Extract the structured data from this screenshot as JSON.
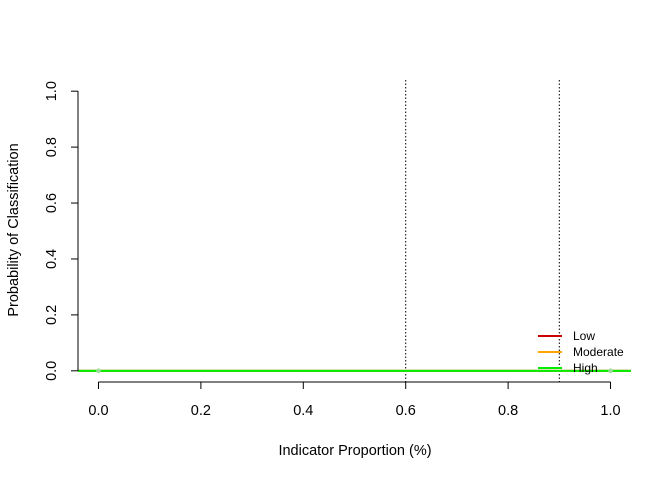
{
  "chart_data": {
    "type": "line",
    "title": "",
    "xlabel": "Indicator Proportion (%)",
    "ylabel": "Probability of Classification",
    "xlim": [
      -0.04,
      1.04
    ],
    "ylim": [
      -0.04,
      1.04
    ],
    "x_ticks": [
      0.0,
      0.2,
      0.4,
      0.6,
      0.8,
      1.0
    ],
    "x_tick_labels": [
      "0.0",
      "0.2",
      "0.4",
      "0.6",
      "0.8",
      "1.0"
    ],
    "y_ticks": [
      0.0,
      0.2,
      0.4,
      0.6,
      0.8,
      1.0
    ],
    "y_tick_labels": [
      "0.0",
      "0.2",
      "0.4",
      "0.6",
      "0.8",
      "1.0"
    ],
    "grid": false,
    "reference_lines": [
      {
        "orientation": "vertical",
        "x": 0.6,
        "style": "dotted",
        "color": "#000000"
      },
      {
        "orientation": "vertical",
        "x": 0.9,
        "style": "dotted",
        "color": "#000000"
      }
    ],
    "series": [
      {
        "name": "Low",
        "color": "#CC0000",
        "x": [
          0.0,
          1.0
        ],
        "y": [
          0.0,
          0.0
        ],
        "line_range": [
          -0.04,
          1.04
        ]
      },
      {
        "name": "Moderate",
        "color": "#FFA500",
        "x": [
          0.0,
          1.0
        ],
        "y": [
          0.0,
          0.0
        ],
        "line_range": [
          -0.04,
          1.04
        ]
      },
      {
        "name": "High",
        "color": "#00EE00",
        "x": [
          0.0,
          1.0
        ],
        "y": [
          0.0,
          0.0
        ],
        "line_range": [
          -0.04,
          1.04
        ]
      }
    ],
    "legend": {
      "position": "bottom-right",
      "entries": [
        "Low",
        "Moderate",
        "High"
      ]
    }
  }
}
